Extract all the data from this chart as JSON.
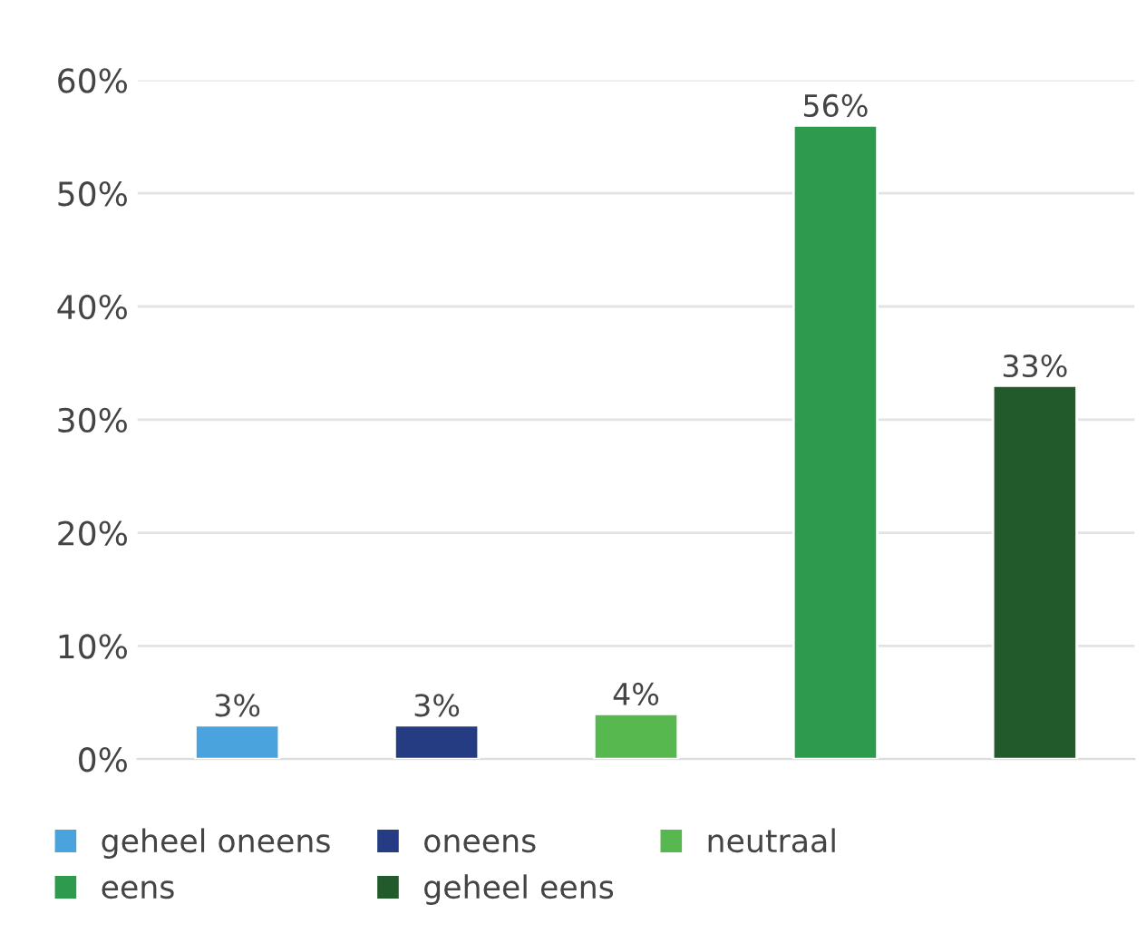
{
  "chart_data": {
    "type": "bar",
    "categories": [
      null,
      null,
      null,
      null,
      null
    ],
    "series": [
      {
        "name": "geheel oneens",
        "color": "#4ba3dd",
        "values": [
          3,
          null,
          null,
          null,
          null
        ]
      },
      {
        "name": "oneens",
        "color": "#253c82",
        "values": [
          null,
          3,
          null,
          null,
          null
        ]
      },
      {
        "name": "neutraal",
        "color": "#56b84f",
        "values": [
          null,
          null,
          4,
          null,
          null
        ]
      },
      {
        "name": "eens",
        "color": "#2e9a4e",
        "values": [
          null,
          null,
          null,
          56,
          null
        ]
      },
      {
        "name": "geheel eens",
        "color": "#235a2c",
        "values": [
          null,
          null,
          null,
          null,
          33
        ]
      }
    ],
    "ylim": [
      0,
      60
    ],
    "yticks": [
      {
        "value": 0,
        "label": "0%"
      },
      {
        "value": 10,
        "label": "10%"
      },
      {
        "value": 20,
        "label": "20%"
      },
      {
        "value": 30,
        "label": "30%"
      },
      {
        "value": 40,
        "label": "40%"
      },
      {
        "value": 50,
        "label": "50%"
      },
      {
        "value": 60,
        "label": "60%"
      }
    ],
    "value_labels": [
      "3%",
      "3%",
      "4%",
      "56%",
      "33%"
    ],
    "grid": "y",
    "legend": "bottom",
    "tick_labels": "y"
  }
}
